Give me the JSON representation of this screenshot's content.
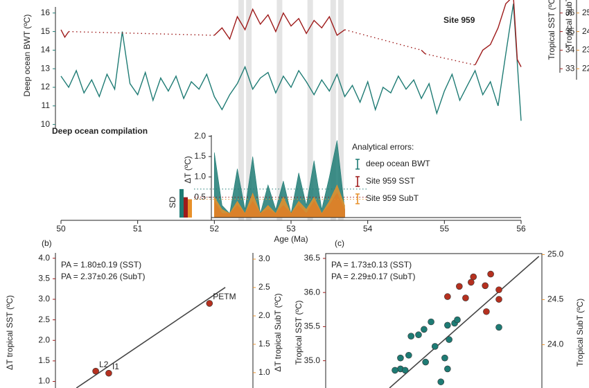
{
  "chart_data": [
    {
      "type": "line",
      "xlabel": "Age (Ma)",
      "ylabel": "Deep ocean BWT (ºC)",
      "y2label": "Tropical SST (ºC)",
      "y3label": "Tropical SubT (ºC)",
      "xlim": [
        50,
        56
      ],
      "xticks": [
        50,
        51,
        52,
        53,
        54,
        55,
        56
      ],
      "ylim": [
        9.8,
        16.7
      ],
      "yticks": [
        10,
        11,
        12,
        13,
        14,
        15,
        16
      ],
      "y2lim": [
        29.8,
        36.7
      ],
      "y2ticks": [
        33,
        34,
        35,
        36
      ],
      "y3lim": [
        18.8,
        25.7
      ],
      "y3ticks": [
        22,
        23,
        24,
        25
      ],
      "annotations": [
        "Deep ocean compilation",
        "Site 959"
      ],
      "series": [
        {
          "name": "Deep ocean compilation",
          "color": "#1e7b74",
          "x": [
            50.0,
            50.1,
            50.2,
            50.3,
            50.4,
            50.5,
            50.6,
            50.7,
            50.8,
            50.9,
            51.0,
            51.1,
            51.2,
            51.3,
            51.4,
            51.5,
            51.6,
            51.7,
            51.8,
            51.9,
            52.0,
            52.1,
            52.2,
            52.3,
            52.4,
            52.5,
            52.6,
            52.7,
            52.8,
            52.9,
            53.0,
            53.1,
            53.2,
            53.3,
            53.4,
            53.5,
            53.6,
            53.7,
            53.8,
            53.9,
            54.0,
            54.1,
            54.2,
            54.3,
            54.4,
            54.5,
            54.6,
            54.7,
            54.8,
            54.9,
            55.0,
            55.1,
            55.2,
            55.3,
            55.4,
            55.5,
            55.6,
            55.7,
            55.8,
            55.9,
            56.0
          ],
          "values": [
            12.6,
            12.0,
            12.9,
            11.7,
            12.4,
            11.5,
            12.7,
            11.9,
            15.0,
            12.2,
            11.6,
            12.8,
            11.3,
            12.5,
            11.8,
            12.6,
            11.4,
            12.3,
            11.9,
            12.7,
            11.5,
            10.8,
            11.6,
            12.2,
            13.1,
            11.9,
            12.5,
            12.8,
            11.7,
            12.6,
            12.0,
            12.9,
            12.3,
            11.6,
            12.4,
            11.8,
            12.7,
            11.5,
            12.1,
            11.2,
            12.3,
            10.8,
            12.0,
            11.7,
            12.6,
            11.9,
            12.4,
            11.4,
            12.2,
            10.6,
            11.8,
            12.7,
            11.3,
            12.1,
            12.9,
            11.6,
            12.3,
            11.0,
            13.8,
            16.5,
            10.2
          ]
        },
        {
          "name": "Site 959",
          "color": "#9e1b1b",
          "axis": "y2",
          "x": [
            50.0,
            50.05,
            50.1,
            null,
            52.0,
            52.1,
            52.2,
            52.3,
            52.4,
            52.5,
            52.6,
            52.7,
            52.8,
            52.9,
            53.0,
            53.1,
            53.2,
            53.3,
            53.4,
            53.5,
            53.6,
            53.7,
            null,
            54.7,
            54.75,
            null,
            55.4,
            55.5,
            55.6,
            55.7,
            55.8,
            55.9,
            55.95,
            56.0
          ],
          "values": [
            35.1,
            34.7,
            35.0,
            null,
            34.8,
            35.2,
            34.6,
            35.8,
            35.1,
            36.2,
            35.4,
            35.9,
            35.0,
            36.0,
            35.3,
            35.7,
            34.9,
            35.6,
            35.2,
            35.8,
            34.8,
            35.1,
            null,
            34.0,
            33.8,
            null,
            33.2,
            34.0,
            34.3,
            35.2,
            36.5,
            36.9,
            33.5,
            33.1
          ]
        }
      ]
    },
    {
      "type": "area",
      "ylabel": "ΔT (ºC)",
      "legend_title": "Analytical errors:",
      "sd_label": "SD",
      "xlim": [
        50,
        56
      ],
      "ylim": [
        0,
        2.05
      ],
      "yticks": [
        0.5,
        {
          "value": 1,
          "label": "1.0"
        },
        1.5,
        {
          "value": 2,
          "label": "2.0"
        }
      ],
      "highlight_x": [
        52.35,
        52.45,
        52.85,
        53.25,
        53.55,
        53.65
      ],
      "series": [
        {
          "name": "deep ocean BWT",
          "color": "#1e7b74",
          "sd": 0.7,
          "x": [
            52.0,
            52.1,
            52.2,
            52.3,
            52.4,
            52.5,
            52.6,
            52.7,
            52.8,
            52.9,
            53.0,
            53.1,
            53.2,
            53.3,
            53.4,
            53.5,
            53.6,
            53.7
          ],
          "values": [
            1.6,
            0.3,
            0.1,
            1.2,
            0.2,
            1.5,
            0.1,
            0.8,
            0.2,
            0.9,
            0.1,
            1.1,
            0.3,
            1.4,
            0.2,
            1.0,
            1.9,
            0.2
          ]
        },
        {
          "name": "Site 959 SST",
          "color": "#9e1b1b",
          "sd": 0.5,
          "x": [
            52.0,
            52.1,
            52.2,
            52.3,
            52.4,
            52.5,
            52.6,
            52.7,
            52.8,
            52.9,
            53.0,
            53.1,
            53.2,
            53.3,
            53.4,
            53.5,
            53.6,
            53.7
          ],
          "values": [
            0.4,
            0.1,
            0.1,
            0.3,
            0.1,
            0.4,
            0.1,
            0.2,
            0.1,
            0.3,
            0.1,
            0.3,
            0.1,
            0.4,
            0.1,
            0.3,
            0.6,
            0.2
          ]
        },
        {
          "name": "Site 959 SubT",
          "color": "#e8902a",
          "sd": 0.45,
          "x": [
            52.0,
            52.1,
            52.2,
            52.3,
            52.4,
            52.5,
            52.6,
            52.7,
            52.8,
            52.9,
            53.0,
            53.1,
            53.2,
            53.3,
            53.4,
            53.5,
            53.6,
            53.7
          ],
          "values": [
            0.5,
            0.2,
            0.1,
            0.4,
            0.1,
            0.6,
            0.1,
            0.3,
            0.1,
            0.5,
            0.1,
            0.4,
            0.2,
            0.5,
            0.1,
            0.4,
            0.8,
            0.3
          ]
        }
      ]
    },
    {
      "type": "scatter",
      "panel_label": "(b)",
      "ylabel": "ΔT tropical  SST (ºC)",
      "y2label": "ΔT tropical SubT (ºC)",
      "xlim": [
        0,
        5
      ],
      "ylim": [
        0.84,
        4.13
      ],
      "yticks": [
        {
          "value": 1,
          "label": "1.0"
        },
        1.5,
        {
          "value": 2,
          "label": "2.0"
        },
        2.5,
        {
          "value": 3,
          "label": "3.0"
        },
        3.5,
        {
          "value": 4,
          "label": "4.0"
        }
      ],
      "y2lim": [
        0.73,
        3.11
      ],
      "y2ticks": [
        {
          "value": 1,
          "label": "1.0"
        },
        1.5,
        {
          "value": 2,
          "label": "2.0"
        },
        2.5,
        {
          "value": 3,
          "label": "3.0"
        }
      ],
      "annotations": [
        {
          "text": "PA = 1.80±0.19 (SST)",
          "color": "#b5301f"
        },
        {
          "text": "PA = 2.37±0.26 (SubT)",
          "color": "#e8902a"
        }
      ],
      "series": [
        {
          "color": "#b5301f",
          "x": [
            3.9,
            1.02,
            1.35
          ],
          "values": [
            2.9,
            1.25,
            1.2
          ],
          "labels": [
            "PETM",
            "L2",
            "I1"
          ]
        }
      ],
      "fit": {
        "x": [
          0.53,
          4.3
        ],
        "values": [
          0.84,
          3.29
        ]
      }
    },
    {
      "type": "scatter",
      "panel_label": "(c)",
      "ylabel": "Tropical SST (ºC)",
      "y2label": "Tropical SubT (ºC)",
      "xlim": [
        0,
        5
      ],
      "ylim": [
        34.6,
        36.53
      ],
      "yticks": [
        {
          "value": 35,
          "label": "35.0"
        },
        35.5,
        {
          "value": 36,
          "label": "36.0"
        },
        36.5
      ],
      "y2lim": [
        23.52,
        24.98
      ],
      "y2ticks": [
        {
          "value": 24,
          "label": "24.0"
        },
        24.5,
        {
          "value": 25,
          "label": "25.0"
        }
      ],
      "annotations": [
        {
          "text": "PA = 1.73±0.13 (SST)",
          "color": "#b5301f"
        },
        {
          "text": "PA = 2.29±0.17 (SubT)",
          "color": "#e8902a"
        }
      ],
      "series": [
        {
          "color": "#b5301f",
          "x": [
            3.29,
            2.93,
            3.23,
            3.59,
            3.94,
            2.63,
            3.09,
            3.73,
            3.94,
            3.62
          ],
          "values": [
            36.23,
            36.09,
            36.15,
            36.1,
            36.04,
            35.94,
            35.92,
            36.27,
            35.9,
            35.72
          ]
        },
        {
          "color": "#1e7b74",
          "x": [
            1.43,
            1.64,
            1.43,
            1.29,
            1.55,
            1.7,
            1.89,
            2.03,
            2.21,
            2.31,
            2.63,
            2.81,
            2.88,
            2.56,
            2.67,
            2.07,
            2.63,
            2.46,
            3.94
          ],
          "values": [
            35.04,
            35.08,
            34.88,
            34.86,
            34.86,
            35.36,
            35.38,
            35.46,
            35.57,
            35.21,
            35.52,
            35.55,
            35.6,
            35.04,
            35.31,
            34.98,
            34.88,
            34.69,
            35.49
          ]
        }
      ],
      "fit": {
        "x": [
          1.15,
          4.96
        ],
        "values": [
          34.6,
          36.53
        ]
      }
    }
  ]
}
